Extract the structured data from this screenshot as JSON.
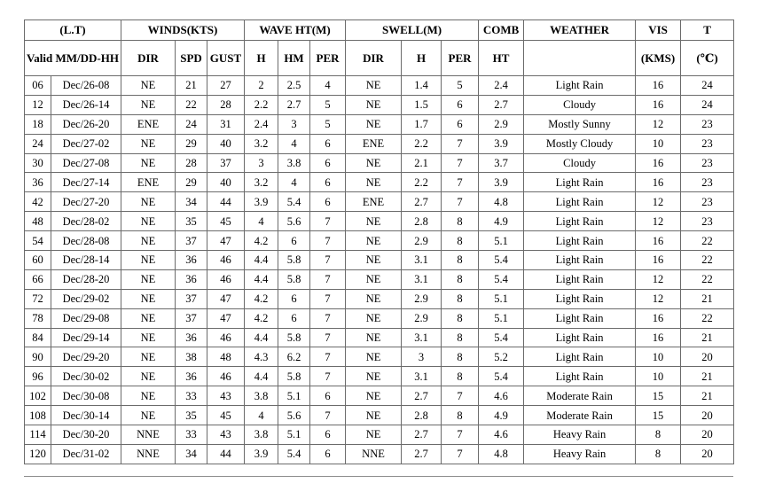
{
  "header_row1": [
    "(L.T)",
    "WINDS(KTS)",
    "WAVE HT(M)",
    "SWELL(M)",
    "COMB",
    "WEATHER",
    "VIS",
    "T"
  ],
  "header_row2": {
    "valid": "Valid MM/DD-HH",
    "dir": "DIR",
    "spd": "SPD",
    "gust": "GUST",
    "h": "H",
    "hm": "HM",
    "per": "PER",
    "sdir": "DIR",
    "sh": "H",
    "sper": "PER",
    "comb_h": "HT",
    "weather": "",
    "vis": "(KMS)",
    "t": "(℃)"
  },
  "rows": [
    [
      "06",
      "Dec/26-08",
      "NE",
      "21",
      "27",
      "2",
      "2.5",
      "4",
      "NE",
      "1.4",
      "5",
      "2.4",
      "Light Rain",
      "16",
      "24"
    ],
    [
      "12",
      "Dec/26-14",
      "NE",
      "22",
      "28",
      "2.2",
      "2.7",
      "5",
      "NE",
      "1.5",
      "6",
      "2.7",
      "Cloudy",
      "16",
      "24"
    ],
    [
      "18",
      "Dec/26-20",
      "ENE",
      "24",
      "31",
      "2.4",
      "3",
      "5",
      "NE",
      "1.7",
      "6",
      "2.9",
      "Mostly Sunny",
      "12",
      "23"
    ],
    [
      "24",
      "Dec/27-02",
      "NE",
      "29",
      "40",
      "3.2",
      "4",
      "6",
      "ENE",
      "2.2",
      "7",
      "3.9",
      "Mostly Cloudy",
      "10",
      "23"
    ],
    [
      "30",
      "Dec/27-08",
      "NE",
      "28",
      "37",
      "3",
      "3.8",
      "6",
      "NE",
      "2.1",
      "7",
      "3.7",
      "Cloudy",
      "16",
      "23"
    ],
    [
      "36",
      "Dec/27-14",
      "ENE",
      "29",
      "40",
      "3.2",
      "4",
      "6",
      "NE",
      "2.2",
      "7",
      "3.9",
      "Light Rain",
      "16",
      "23"
    ],
    [
      "42",
      "Dec/27-20",
      "NE",
      "34",
      "44",
      "3.9",
      "5.4",
      "6",
      "ENE",
      "2.7",
      "7",
      "4.8",
      "Light Rain",
      "12",
      "23"
    ],
    [
      "48",
      "Dec/28-02",
      "NE",
      "35",
      "45",
      "4",
      "5.6",
      "7",
      "NE",
      "2.8",
      "8",
      "4.9",
      "Light Rain",
      "12",
      "23"
    ],
    [
      "54",
      "Dec/28-08",
      "NE",
      "37",
      "47",
      "4.2",
      "6",
      "7",
      "NE",
      "2.9",
      "8",
      "5.1",
      "Light Rain",
      "16",
      "22"
    ],
    [
      "60",
      "Dec/28-14",
      "NE",
      "36",
      "46",
      "4.4",
      "5.8",
      "7",
      "NE",
      "3.1",
      "8",
      "5.4",
      "Light Rain",
      "16",
      "22"
    ],
    [
      "66",
      "Dec/28-20",
      "NE",
      "36",
      "46",
      "4.4",
      "5.8",
      "7",
      "NE",
      "3.1",
      "8",
      "5.4",
      "Light Rain",
      "12",
      "22"
    ],
    [
      "72",
      "Dec/29-02",
      "NE",
      "37",
      "47",
      "4.2",
      "6",
      "7",
      "NE",
      "2.9",
      "8",
      "5.1",
      "Light Rain",
      "12",
      "21"
    ],
    [
      "78",
      "Dec/29-08",
      "NE",
      "37",
      "47",
      "4.2",
      "6",
      "7",
      "NE",
      "2.9",
      "8",
      "5.1",
      "Light Rain",
      "16",
      "22"
    ],
    [
      "84",
      "Dec/29-14",
      "NE",
      "36",
      "46",
      "4.4",
      "5.8",
      "7",
      "NE",
      "3.1",
      "8",
      "5.4",
      "Light Rain",
      "16",
      "21"
    ],
    [
      "90",
      "Dec/29-20",
      "NE",
      "38",
      "48",
      "4.3",
      "6.2",
      "7",
      "NE",
      "3",
      "8",
      "5.2",
      "Light Rain",
      "10",
      "20"
    ],
    [
      "96",
      "Dec/30-02",
      "NE",
      "36",
      "46",
      "4.4",
      "5.8",
      "7",
      "NE",
      "3.1",
      "8",
      "5.4",
      "Light Rain",
      "10",
      "21"
    ],
    [
      "102",
      "Dec/30-08",
      "NE",
      "33",
      "43",
      "3.8",
      "5.1",
      "6",
      "NE",
      "2.7",
      "7",
      "4.6",
      "Moderate Rain",
      "15",
      "21"
    ],
    [
      "108",
      "Dec/30-14",
      "NE",
      "35",
      "45",
      "4",
      "5.6",
      "7",
      "NE",
      "2.8",
      "8",
      "4.9",
      "Moderate Rain",
      "15",
      "20"
    ],
    [
      "114",
      "Dec/30-20",
      "NNE",
      "33",
      "43",
      "3.8",
      "5.1",
      "6",
      "NE",
      "2.7",
      "7",
      "4.6",
      "Heavy Rain",
      "8",
      "20"
    ],
    [
      "120",
      "Dec/31-02",
      "NNE",
      "34",
      "44",
      "3.9",
      "5.4",
      "6",
      "NNE",
      "2.7",
      "7",
      "4.8",
      "Heavy Rain",
      "8",
      "20"
    ]
  ]
}
